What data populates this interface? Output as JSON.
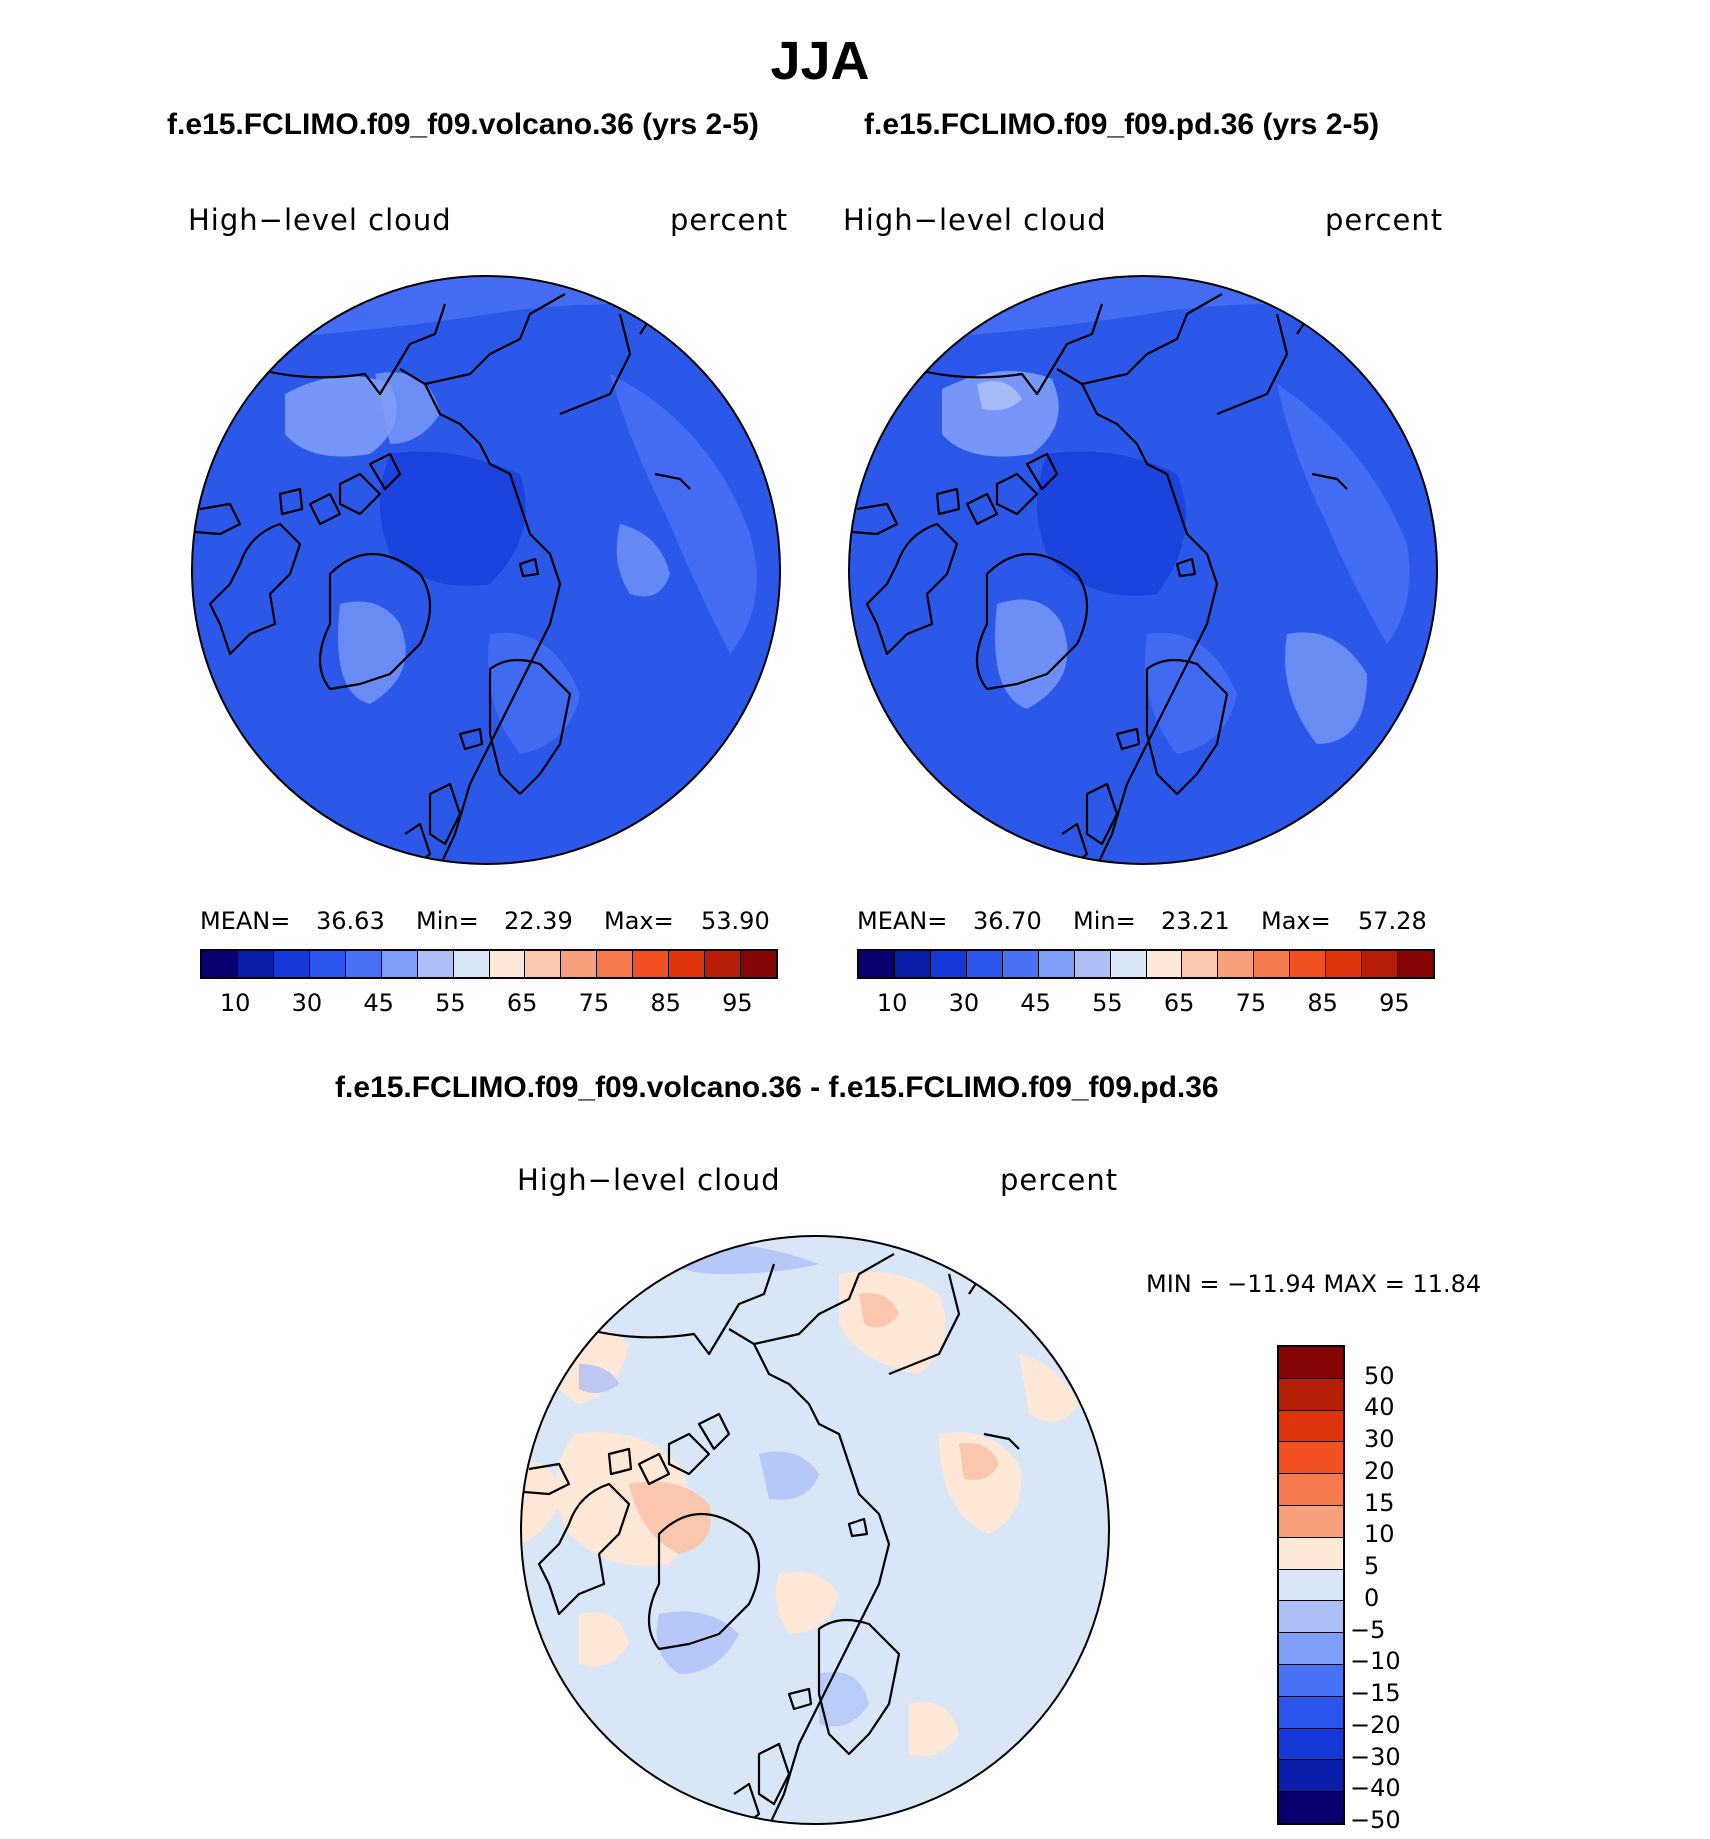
{
  "title": "JJA",
  "panels": [
    {
      "subtitle": "f.e15.FCLIMO.f09_f09.volcano.36 (yrs 2-5)",
      "variable": "High−level  cloud",
      "units": "percent",
      "stats": {
        "mean_label": "MEAN=",
        "mean": "36.63",
        "min_label": "Min=",
        "min": "22.39",
        "max_label": "Max=",
        "max": "53.90"
      }
    },
    {
      "subtitle": "f.e15.FCLIMO.f09_f09.pd.36 (yrs 2-5)",
      "variable": "High−level  cloud",
      "units": "percent",
      "stats": {
        "mean_label": "MEAN=",
        "mean": "36.70",
        "min_label": "Min=",
        "min": "23.21",
        "max_label": "Max=",
        "max": "57.28"
      }
    }
  ],
  "abs_colorbar": {
    "colors": [
      "#08006e",
      "#0a1da8",
      "#1638d8",
      "#2c55ee",
      "#4a72f5",
      "#7e9ef8",
      "#aebff8",
      "#d8e6f8",
      "#fde7d6",
      "#fbc7ad",
      "#f8a07c",
      "#f67a4e",
      "#f15022",
      "#e0340c",
      "#b51f08",
      "#850505"
    ],
    "labels": [
      "10",
      "30",
      "45",
      "55",
      "65",
      "75",
      "85",
      "95"
    ]
  },
  "diff_panel": {
    "subtitle": "f.e15.FCLIMO.f09_f09.volcano.36 - f.e15.FCLIMO.f09_f09.pd.36",
    "variable": "High−level  cloud",
    "units": "percent",
    "minmax": "MIN = −11.94 MAX =   11.84"
  },
  "diff_colorbar": {
    "colors": [
      "#850505",
      "#b51f08",
      "#e0340c",
      "#f15022",
      "#f67a4e",
      "#f8a07c",
      "#fde7d6",
      "#d8e6f8",
      "#aebff8",
      "#7e9ef8",
      "#4a72f5",
      "#2c55ee",
      "#1638d8",
      "#0a1da8",
      "#08006e"
    ],
    "labels": [
      "50",
      "40",
      "30",
      "20",
      "15",
      "10",
      "5",
      "0",
      "−5",
      "−10",
      "−15",
      "−20",
      "−30",
      "−40",
      "−50"
    ]
  },
  "map_colors": {
    "base_a": "#2b58e8",
    "base_b": "#2b58e8",
    "diff_base": "#d8e6f8",
    "coast": "#000000"
  }
}
